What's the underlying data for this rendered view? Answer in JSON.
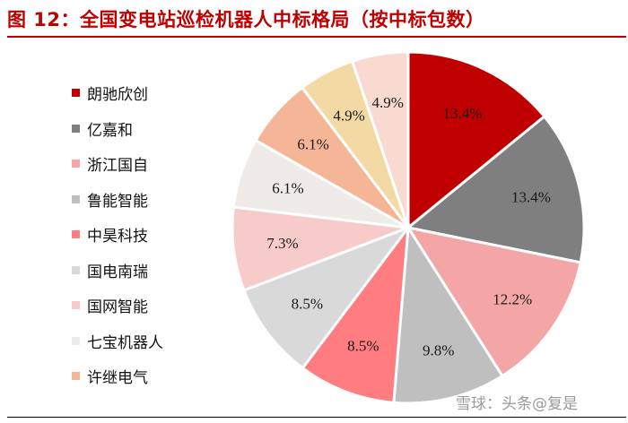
{
  "title": "图 12：全国变电站巡检机器人中标格局（按中标包数）",
  "watermark": "雪球：头条@复是",
  "chart_data": {
    "type": "pie",
    "title": "图 12：全国变电站巡检机器人中标格局（按中标包数）",
    "legend_position": "left",
    "slices": [
      {
        "name": "朗驰欣创",
        "value": 13.4,
        "label": "13.4%",
        "color": "#c00000"
      },
      {
        "name": "亿嘉和",
        "value": 13.4,
        "label": "13.4%",
        "color": "#7f7f7f"
      },
      {
        "name": "浙江国自",
        "value": 12.2,
        "label": "12.2%",
        "color": "#f4a6a6"
      },
      {
        "name": "鲁能智能",
        "value": 9.8,
        "label": "9.8%",
        "color": "#bfbfbf"
      },
      {
        "name": "中昊科技",
        "value": 8.5,
        "label": "8.5%",
        "color": "#ff7c80"
      },
      {
        "name": "国电南瑞",
        "value": 8.5,
        "label": "8.5%",
        "color": "#d9d9d9"
      },
      {
        "name": "国网智能",
        "value": 7.3,
        "label": "7.3%",
        "color": "#f8cbcb"
      },
      {
        "name": "七宝机器人",
        "value": 6.1,
        "label": "6.1%",
        "color": "#eeebe8"
      },
      {
        "name": "许继电气",
        "value": 6.1,
        "label": "6.1%",
        "color": "#f4b696"
      },
      {
        "name": "",
        "value": 4.9,
        "label": "4.9%",
        "color": "#f3d9a3"
      },
      {
        "name": "",
        "value": 4.9,
        "label": "4.9%",
        "color": "#f8dad1"
      }
    ]
  }
}
